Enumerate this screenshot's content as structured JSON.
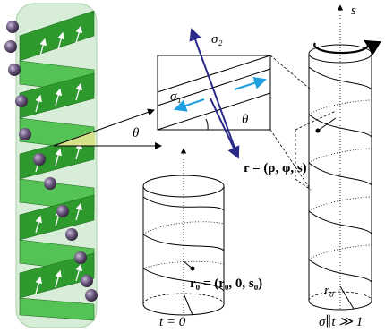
{
  "inset": {
    "sigma2": "σ₂",
    "sigma1": "σ₁",
    "theta": "θ"
  },
  "angle_label": "θ",
  "axis_label": "s",
  "position_label": "r = (ρ, φ, s)",
  "initial_position_label": "r₀ = (r₀, 0, s₀)",
  "left_time_label": "t = 0",
  "right_time_label": "σ∥t ≫ 1",
  "radius_label": "r₀"
}
